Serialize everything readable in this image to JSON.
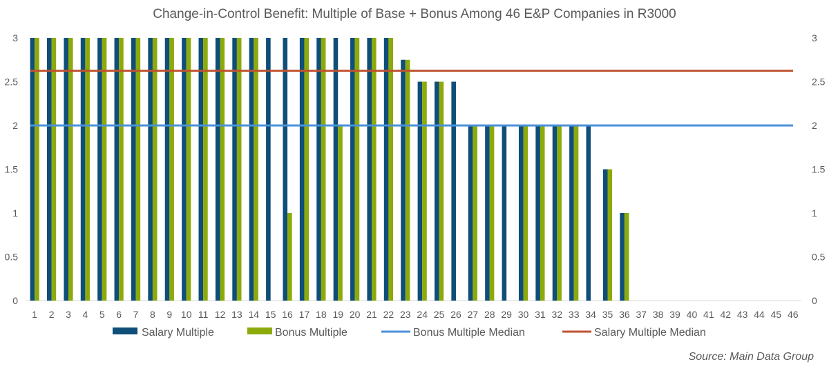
{
  "chart_data": {
    "type": "bar",
    "title": "Change-in-Control Benefit: Multiple of Base + Bonus Among 46 E&P Companies in R3000",
    "categories": [
      "1",
      "2",
      "3",
      "4",
      "5",
      "6",
      "7",
      "8",
      "9",
      "10",
      "11",
      "12",
      "13",
      "14",
      "15",
      "16",
      "17",
      "18",
      "19",
      "20",
      "21",
      "22",
      "23",
      "24",
      "25",
      "26",
      "27",
      "28",
      "29",
      "30",
      "31",
      "32",
      "33",
      "34",
      "35",
      "36",
      "37",
      "38",
      "39",
      "40",
      "41",
      "42",
      "43",
      "44",
      "45",
      "46"
    ],
    "series": [
      {
        "name": "Salary Multiple",
        "color": "#0E4E78",
        "values": [
          3,
          3,
          3,
          3,
          3,
          3,
          3,
          3,
          3,
          3,
          3,
          3,
          3,
          3,
          3,
          3,
          3,
          3,
          3,
          3,
          3,
          3,
          2.75,
          2.5,
          2.5,
          2.5,
          2,
          2,
          2,
          2,
          2,
          2,
          2,
          2,
          1.5,
          1,
          0,
          0,
          0,
          0,
          0,
          0,
          0,
          0,
          0,
          0
        ]
      },
      {
        "name": "Bonus Multiple",
        "color": "#8DAA0B",
        "values": [
          3,
          3,
          3,
          3,
          3,
          3,
          3,
          3,
          3,
          3,
          3,
          3,
          3,
          3,
          0,
          1,
          3,
          3,
          2,
          3,
          3,
          3,
          2.75,
          2.5,
          2.5,
          0,
          2,
          2,
          0,
          2,
          2,
          2,
          2,
          0,
          1.5,
          1,
          0,
          0,
          0,
          0,
          0,
          0,
          0,
          0,
          0,
          0
        ]
      }
    ],
    "lines": [
      {
        "name": "Bonus Multiple Median",
        "value": 2,
        "color": "#4A90D9"
      },
      {
        "name": "Salary Multiple Median",
        "value": 2.625,
        "color": "#C0522F"
      }
    ],
    "ylim": [
      0,
      3
    ],
    "yticks": [
      "0",
      "0.5",
      "1",
      "1.5",
      "2",
      "2.5",
      "3"
    ],
    "secondary_yticks": [
      "0",
      "0.5",
      "1",
      "1.5",
      "2",
      "2.5",
      "3"
    ],
    "legend_position": "bottom",
    "source": "Source: Main Data Group"
  }
}
